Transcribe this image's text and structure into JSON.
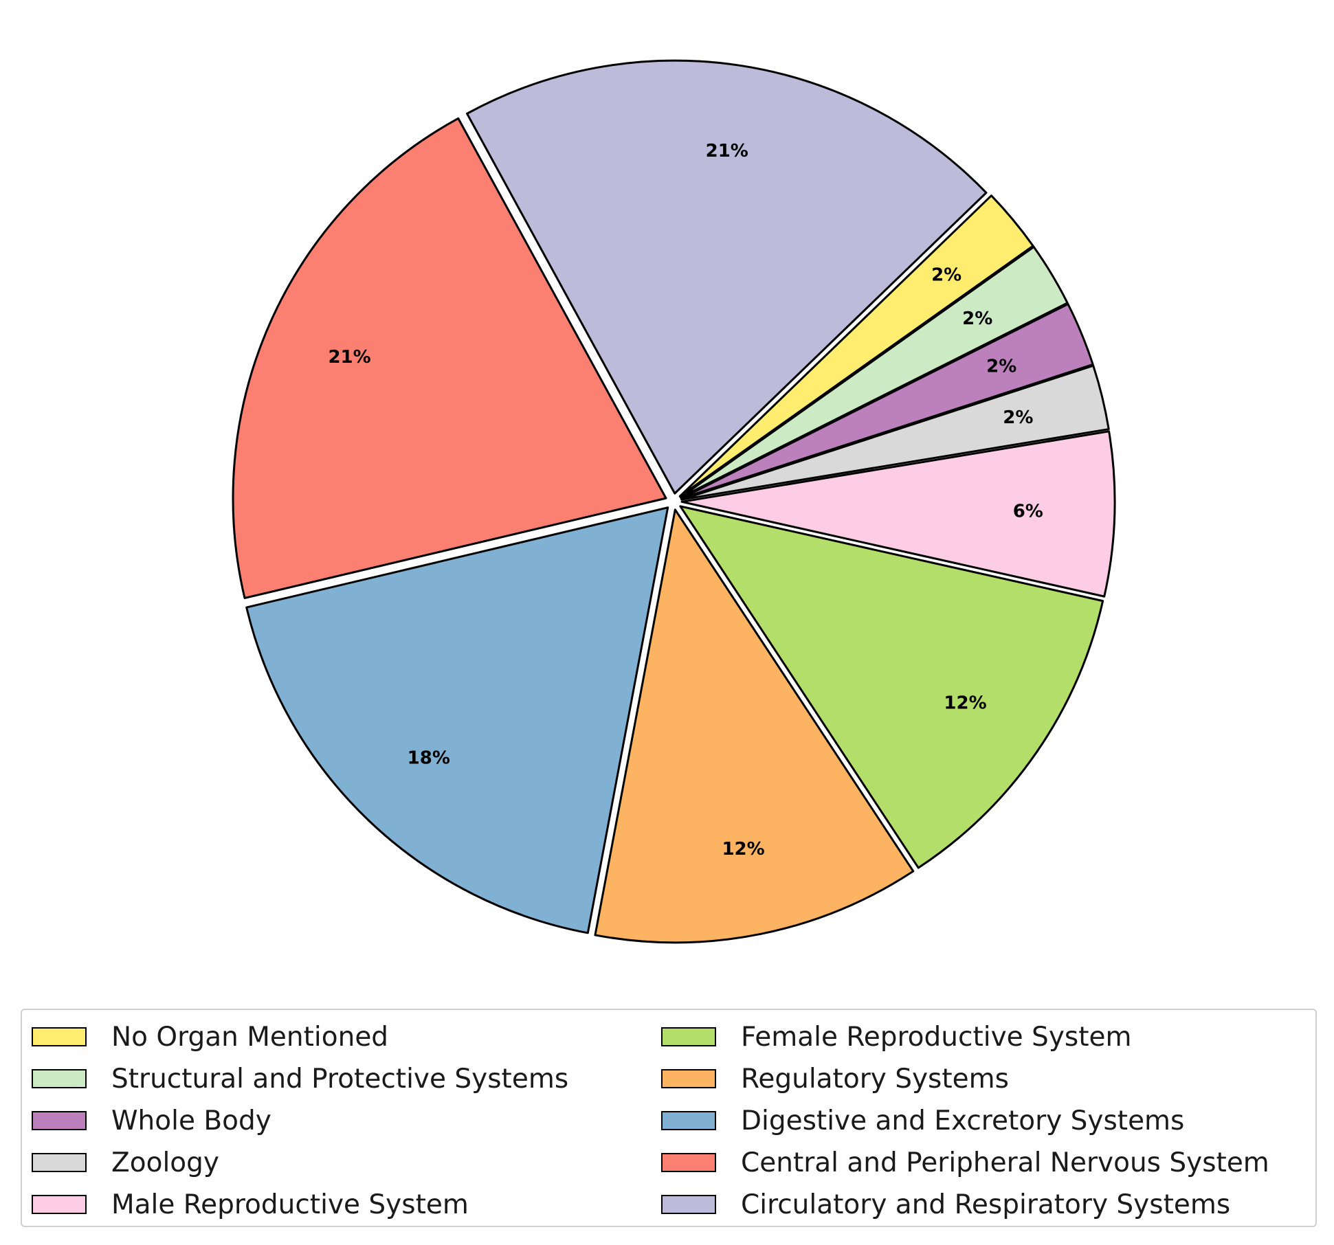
{
  "chart_data": {
    "type": "pie",
    "title": "",
    "slices": [
      {
        "label": "No Organ Mentioned",
        "value": 2.4,
        "display": "2%",
        "color": "#ffed6f"
      },
      {
        "label": "Structural and Protective Systems",
        "value": 2.4,
        "display": "2%",
        "color": "#ccebc5"
      },
      {
        "label": "Whole Body",
        "value": 2.4,
        "display": "2%",
        "color": "#bc80bd"
      },
      {
        "label": "Zoology",
        "value": 2.4,
        "display": "2%",
        "color": "#d9d9d9"
      },
      {
        "label": "Male Reproductive System",
        "value": 6.1,
        "display": "6%",
        "color": "#fccde5"
      },
      {
        "label": "Female Reproductive System",
        "value": 12.2,
        "display": "12%",
        "color": "#b3de69"
      },
      {
        "label": "Regulatory Systems",
        "value": 12.2,
        "display": "12%",
        "color": "#fdb462"
      },
      {
        "label": "Digestive and Excretory Systems",
        "value": 18.3,
        "display": "18%",
        "color": "#80b1d3"
      },
      {
        "label": "Central and Peripheral Nervous System",
        "value": 20.7,
        "display": "21%",
        "color": "#fb8072"
      },
      {
        "label": "Circulatory and Respiratory Systems",
        "value": 20.7,
        "display": "21%",
        "color": "#bebada"
      }
    ],
    "start_angle_deg": 44,
    "direction": "clockwise",
    "legend_position": "bottom",
    "legend_columns": 2
  }
}
